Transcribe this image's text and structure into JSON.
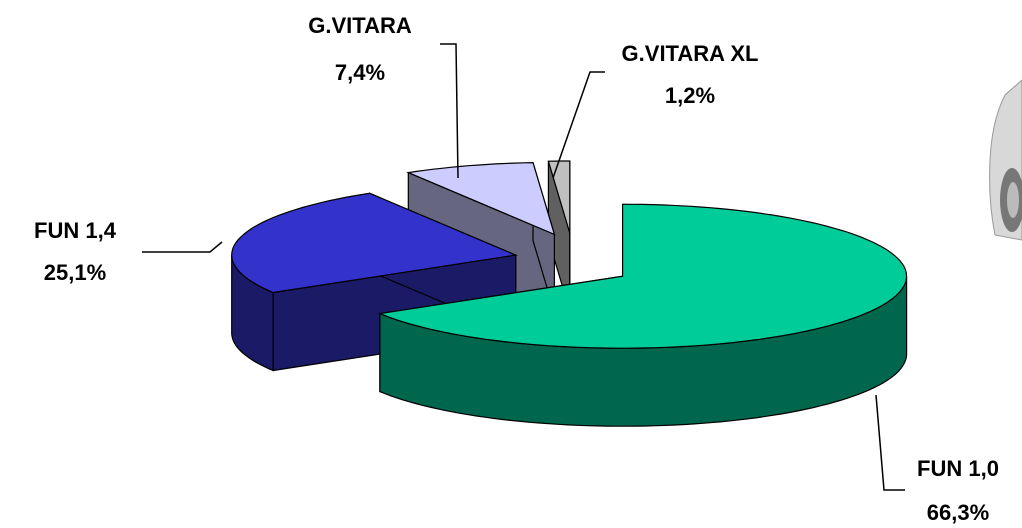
{
  "chart_data": {
    "type": "pie",
    "categories": [
      "FUN 1,0",
      "FUN 1,4",
      "G.VITARA",
      "G.VITARA XL"
    ],
    "values": [
      66.3,
      25.1,
      7.4,
      1.2
    ],
    "value_labels": [
      "66,3%",
      "25,1%",
      "7,4%",
      "1,2%"
    ],
    "colors": [
      "#00cc99",
      "#3333cc",
      "#ccccff",
      "#c0c0c0"
    ]
  }
}
